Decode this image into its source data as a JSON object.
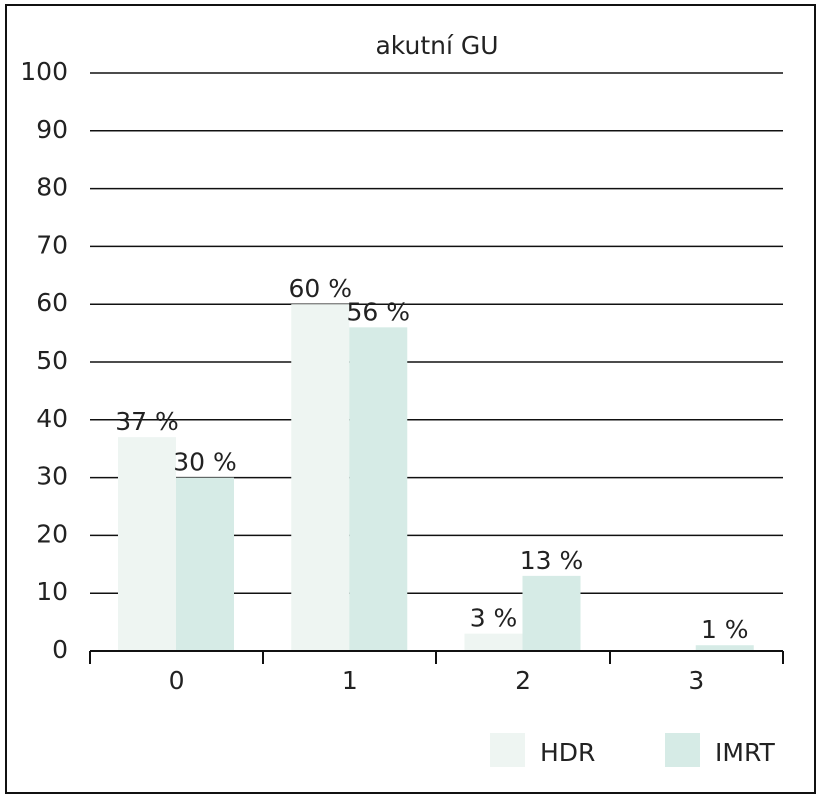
{
  "chart_data": {
    "type": "bar",
    "title": "akutní GU",
    "categories": [
      "0",
      "1",
      "2",
      "3"
    ],
    "series": [
      {
        "name": "HDR",
        "color": "#eef5f2",
        "values": [
          37,
          60,
          3,
          null
        ],
        "value_labels": [
          "37 %",
          "60 %",
          "3 %",
          null
        ]
      },
      {
        "name": "IMRT",
        "color": "#d6ebe6",
        "values": [
          30,
          56,
          13,
          1
        ],
        "value_labels": [
          "30 %",
          "56 %",
          "13 %",
          "1 %"
        ]
      }
    ],
    "ylim": [
      0,
      100
    ],
    "yticks": [
      0,
      10,
      20,
      30,
      40,
      50,
      60,
      70,
      80,
      90,
      100
    ],
    "grid": true
  }
}
